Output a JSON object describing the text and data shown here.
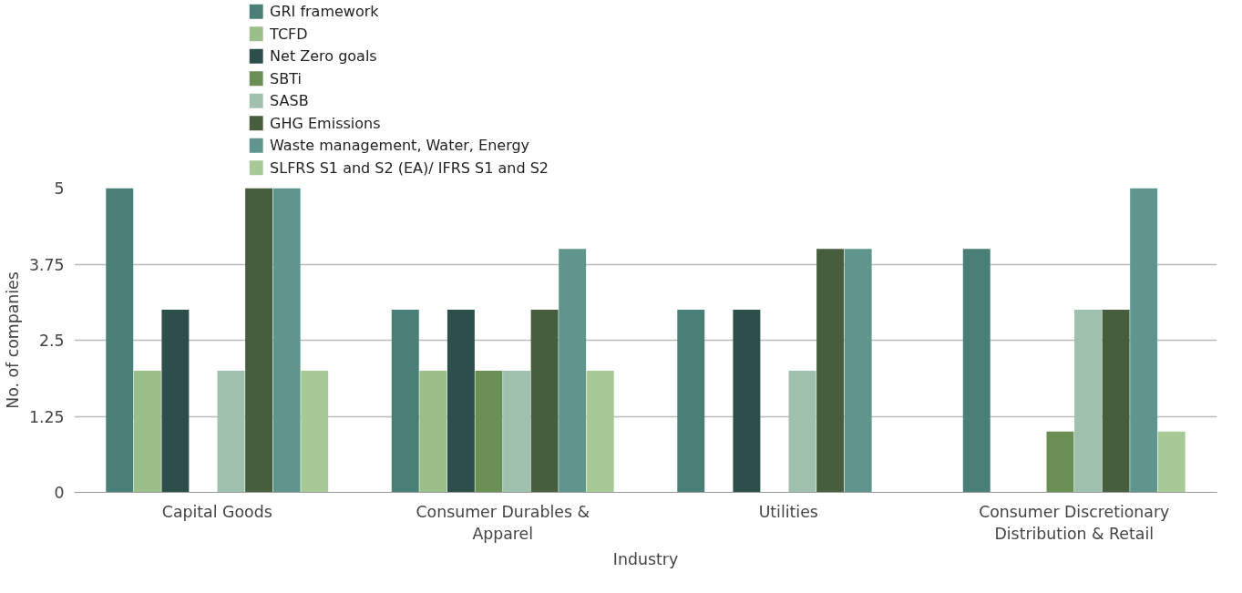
{
  "chart_data": {
    "type": "bar",
    "xlabel": "Industry",
    "ylabel": "No. of companies",
    "categories": [
      "Capital Goods",
      "Consumer Durables & Apparel",
      "Utilities",
      "Consumer Discretionary Distribution & Retail"
    ],
    "series": [
      {
        "name": "GRI framework",
        "color": "#4a7f78",
        "values": [
          5,
          3,
          3,
          4
        ]
      },
      {
        "name": "TCFD",
        "color": "#9abf88",
        "values": [
          2,
          2,
          0,
          0
        ]
      },
      {
        "name": "Net Zero goals",
        "color": "#2d4f4c",
        "values": [
          3,
          3,
          3,
          0
        ]
      },
      {
        "name": "SBTi",
        "color": "#6a8f55",
        "values": [
          0,
          2,
          0,
          1
        ]
      },
      {
        "name": "SASB",
        "color": "#9fc0ac",
        "values": [
          2,
          2,
          2,
          3
        ]
      },
      {
        "name": "GHG Emissions",
        "color": "#465e3e",
        "values": [
          5,
          3,
          4,
          3
        ]
      },
      {
        "name": "Waste management, Water, Energy",
        "color": "#5f958d",
        "values": [
          5,
          4,
          4,
          5
        ]
      },
      {
        "name": "SLFRS S1 and S2 (EA)/ IFRS S1 and S2",
        "color": "#a7c995",
        "values": [
          2,
          2,
          0,
          1
        ]
      }
    ],
    "ylim": [
      0,
      5
    ],
    "yticks": [
      0,
      1.25,
      2.5,
      3.75,
      5
    ],
    "grid": "y",
    "legend": "top"
  }
}
